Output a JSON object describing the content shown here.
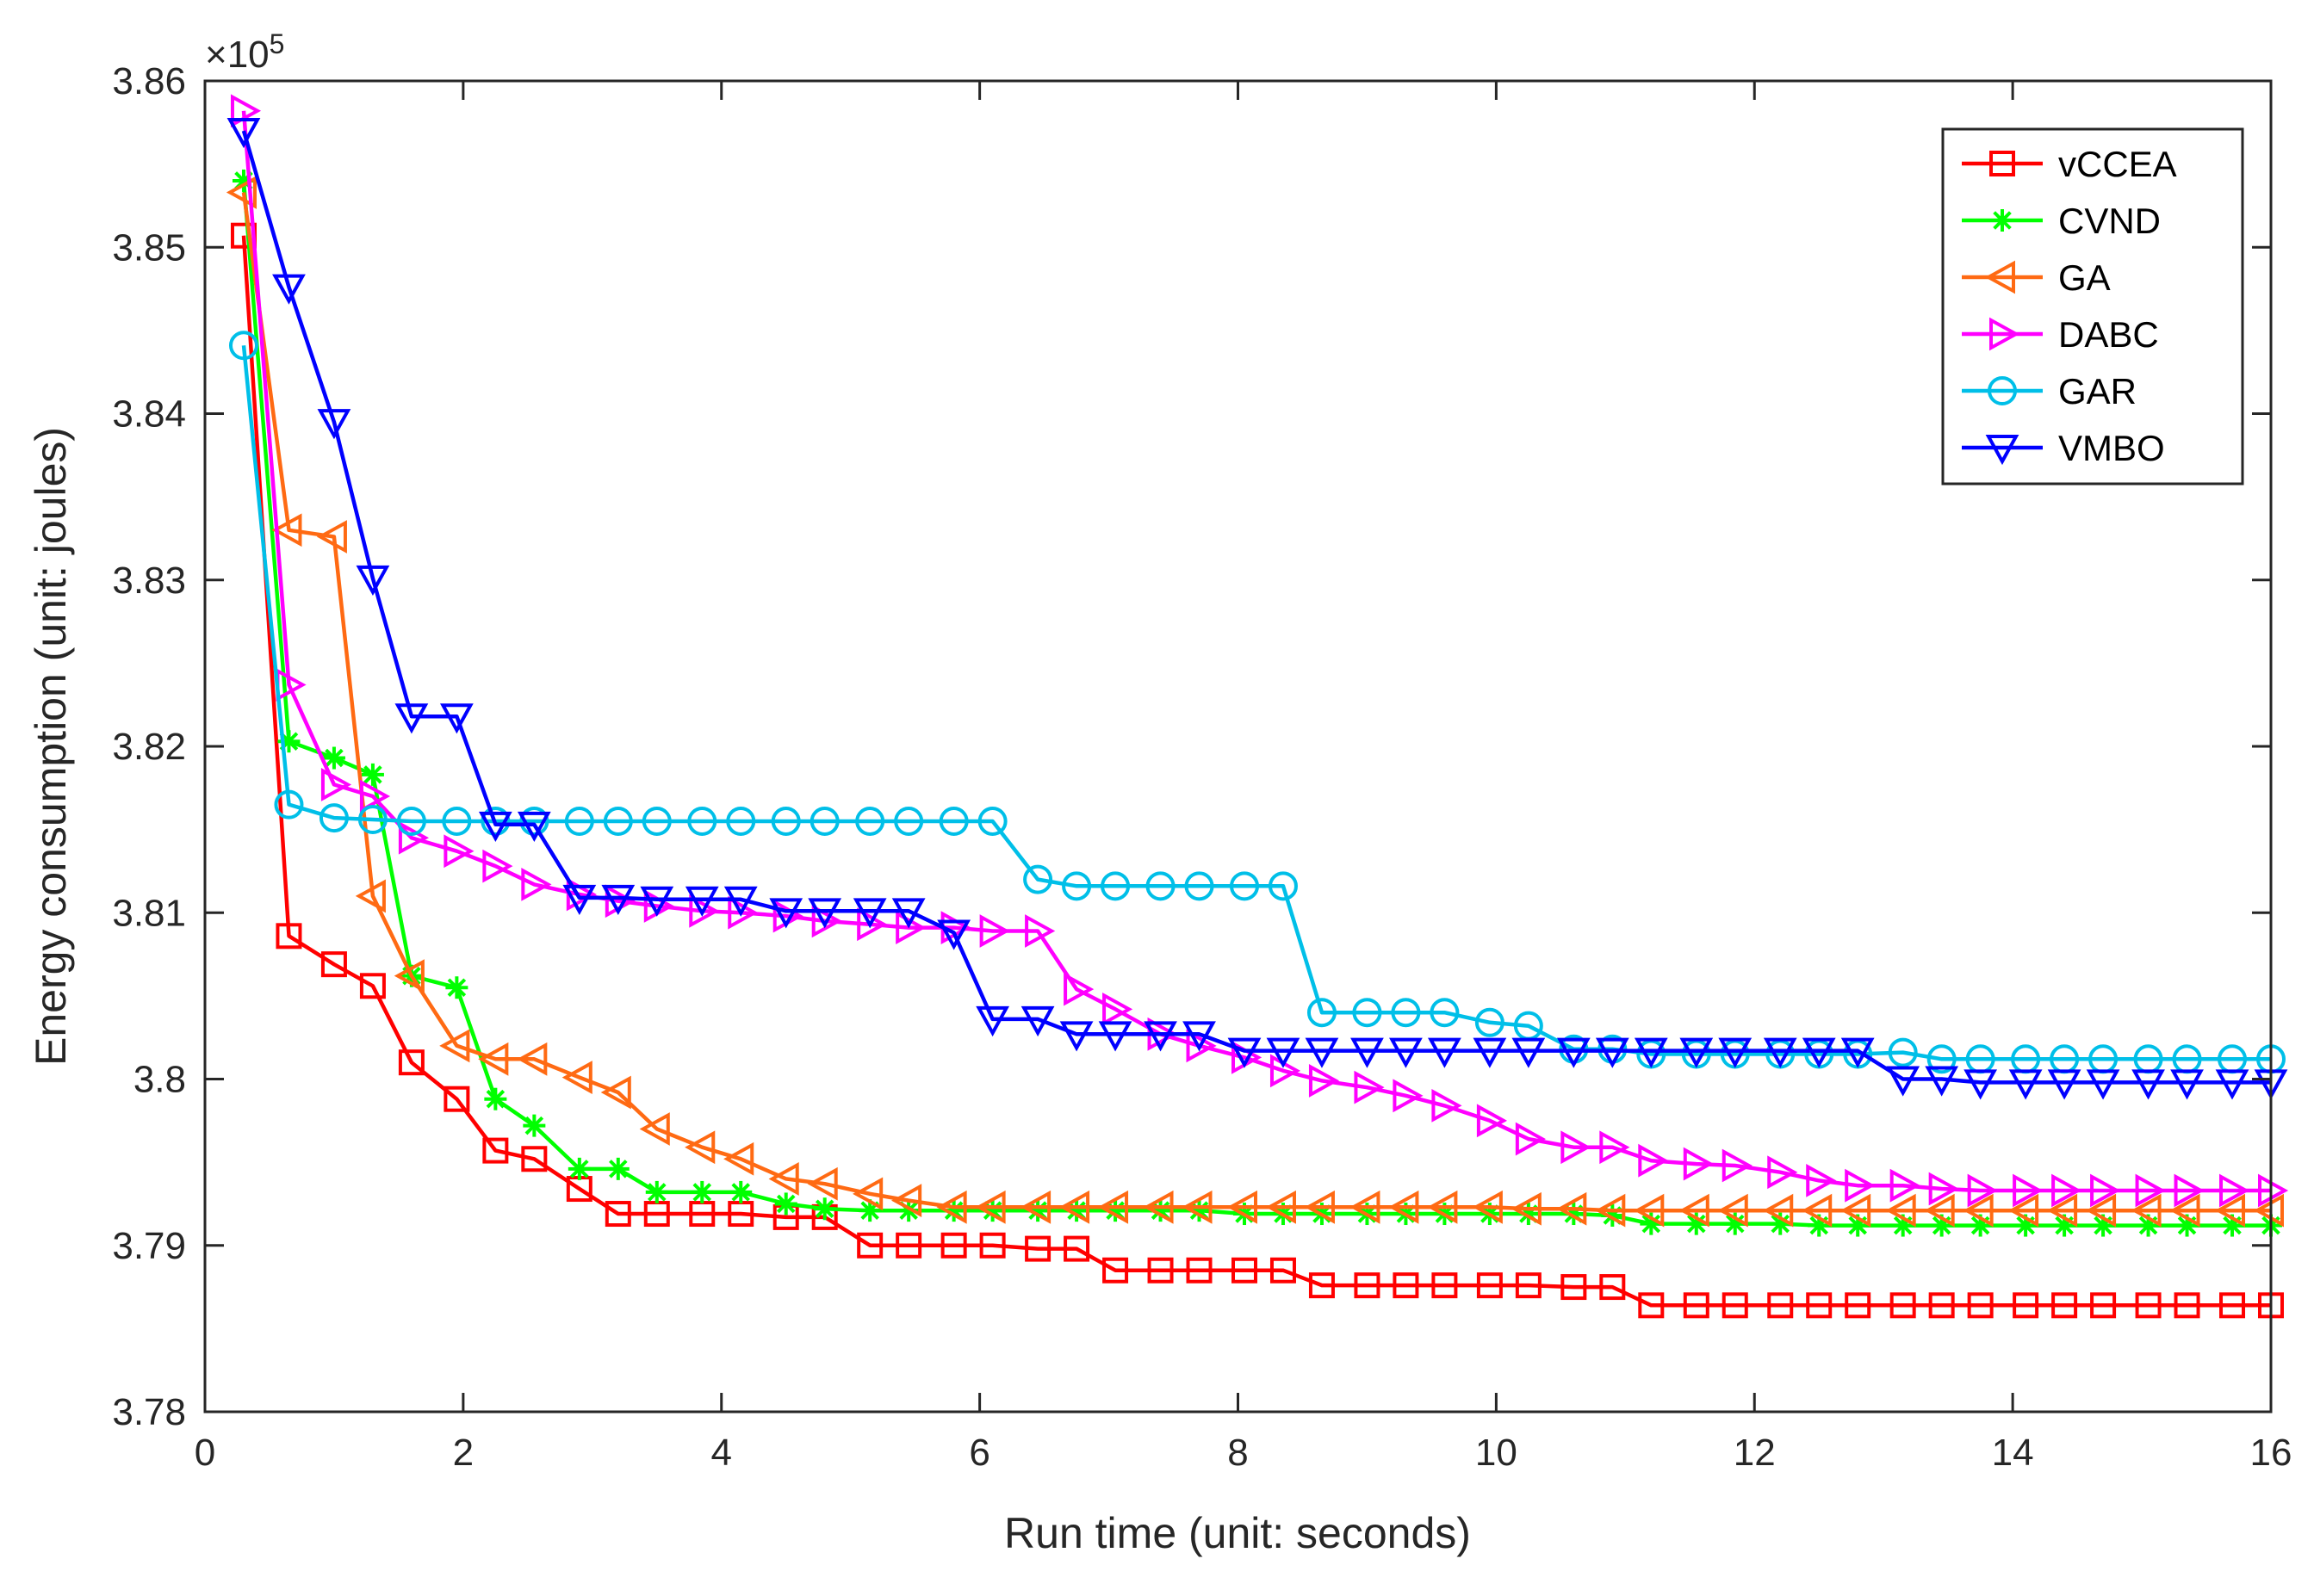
{
  "chart_data": {
    "type": "line",
    "title": "",
    "xlabel": "Run time (unit: seconds)",
    "ylabel": "Energy consumption (unit: joules)",
    "y_exponent_label": "×10",
    "y_exponent_power": "5",
    "xlim": [
      0,
      16
    ],
    "ylim": [
      3.78,
      3.86
    ],
    "x_ticks": [
      0,
      2,
      4,
      6,
      8,
      10,
      12,
      14,
      16
    ],
    "x_tick_labels": [
      "0",
      "2",
      "4",
      "6",
      "8",
      "10",
      "12",
      "14",
      "16"
    ],
    "y_ticks": [
      3.78,
      3.79,
      3.8,
      3.81,
      3.82,
      3.83,
      3.84,
      3.85,
      3.86
    ],
    "y_tick_labels": [
      "3.78",
      "3.79",
      "3.8",
      "3.81",
      "3.82",
      "3.83",
      "3.84",
      "3.85",
      "3.86"
    ],
    "grid": false,
    "legend_position": "top-right",
    "series": [
      {
        "name": "vCCEA",
        "color": "#ff0000",
        "marker": "square",
        "x": [
          0.3,
          0.65,
          1.0,
          1.3,
          1.6,
          1.95,
          2.25,
          2.55,
          2.9,
          3.2,
          3.5,
          3.85,
          4.15,
          4.5,
          4.8,
          5.15,
          5.45,
          5.8,
          6.1,
          6.45,
          6.75,
          7.05,
          7.4,
          7.7,
          8.05,
          8.35,
          8.65,
          9.0,
          9.3,
          9.6,
          9.95,
          10.25,
          10.6,
          10.9,
          11.2,
          11.55,
          11.85,
          12.2,
          12.5,
          12.8,
          13.15,
          13.45,
          13.75,
          14.1,
          14.4,
          14.7,
          15.05,
          15.35,
          15.7,
          16.0
        ],
        "y": [
          3.8507,
          3.8086,
          3.8069,
          3.8056,
          3.801,
          3.7988,
          3.7957,
          3.7952,
          3.7934,
          3.7919,
          3.7919,
          3.7919,
          3.7919,
          3.7917,
          3.7917,
          3.79,
          3.79,
          3.79,
          3.79,
          3.7898,
          3.7898,
          3.7885,
          3.7885,
          3.7885,
          3.7885,
          3.7885,
          3.7876,
          3.7876,
          3.7876,
          3.7876,
          3.7876,
          3.7876,
          3.7875,
          3.7875,
          3.7864,
          3.7864,
          3.7864,
          3.7864,
          3.7864,
          3.7864,
          3.7864,
          3.7864,
          3.7864,
          3.7864,
          3.7864,
          3.7864,
          3.7864,
          3.7864,
          3.7864,
          3.7864
        ]
      },
      {
        "name": "CVND",
        "color": "#00ff00",
        "marker": "asterisk",
        "x": [
          0.3,
          0.65,
          1.0,
          1.3,
          1.6,
          1.95,
          2.25,
          2.55,
          2.9,
          3.2,
          3.5,
          3.85,
          4.15,
          4.5,
          4.8,
          5.15,
          5.45,
          5.8,
          6.1,
          6.45,
          6.75,
          7.05,
          7.4,
          7.7,
          8.05,
          8.35,
          8.65,
          9.0,
          9.3,
          9.6,
          9.95,
          10.25,
          10.6,
          10.9,
          11.2,
          11.55,
          11.85,
          12.2,
          12.5,
          12.8,
          13.15,
          13.45,
          13.75,
          14.1,
          14.4,
          14.7,
          15.05,
          15.35,
          15.7,
          16.0
        ],
        "y": [
          3.854,
          3.8203,
          3.8193,
          3.8183,
          3.8062,
          3.8055,
          3.7988,
          3.7972,
          3.7946,
          3.7946,
          3.7932,
          3.7932,
          3.7932,
          3.7925,
          3.7922,
          3.7921,
          3.7921,
          3.7921,
          3.7921,
          3.7921,
          3.7921,
          3.7921,
          3.7921,
          3.7921,
          3.7919,
          3.7919,
          3.7919,
          3.7919,
          3.7919,
          3.7919,
          3.7919,
          3.7919,
          3.7919,
          3.7918,
          3.7913,
          3.7913,
          3.7913,
          3.7913,
          3.7912,
          3.7912,
          3.7912,
          3.7912,
          3.7912,
          3.7912,
          3.7912,
          3.7912,
          3.7912,
          3.7912,
          3.7912,
          3.7912
        ]
      },
      {
        "name": "GA",
        "color": "#ff6a13",
        "marker": "triangle-left",
        "x": [
          0.3,
          0.65,
          1.0,
          1.3,
          1.6,
          1.95,
          2.25,
          2.55,
          2.9,
          3.2,
          3.5,
          3.85,
          4.15,
          4.5,
          4.8,
          5.15,
          5.45,
          5.8,
          6.1,
          6.45,
          6.75,
          7.05,
          7.4,
          7.7,
          8.05,
          8.35,
          8.65,
          9.0,
          9.3,
          9.6,
          9.95,
          10.25,
          10.6,
          10.9,
          11.2,
          11.55,
          11.85,
          12.2,
          12.5,
          12.8,
          13.15,
          13.45,
          13.75,
          14.1,
          14.4,
          14.7,
          15.05,
          15.35,
          15.7,
          16.0
        ],
        "y": [
          3.8533,
          3.833,
          3.8326,
          3.811,
          3.8062,
          3.802,
          3.8012,
          3.8012,
          3.8001,
          3.7992,
          3.797,
          3.7959,
          3.7952,
          3.794,
          3.7937,
          3.7931,
          3.7927,
          3.7923,
          3.7923,
          3.7923,
          3.7923,
          3.7923,
          3.7923,
          3.7923,
          3.7923,
          3.7923,
          3.7923,
          3.7923,
          3.7923,
          3.7923,
          3.7923,
          3.7922,
          3.7922,
          3.7921,
          3.7921,
          3.7921,
          3.7921,
          3.7921,
          3.7921,
          3.7921,
          3.7921,
          3.7921,
          3.7921,
          3.7921,
          3.7921,
          3.7921,
          3.7921,
          3.7921,
          3.7921,
          3.7921
        ]
      },
      {
        "name": "DABC",
        "color": "#ff00ff",
        "marker": "triangle-right",
        "x": [
          0.3,
          0.65,
          1.0,
          1.3,
          1.6,
          1.95,
          2.25,
          2.55,
          2.9,
          3.2,
          3.5,
          3.85,
          4.15,
          4.5,
          4.8,
          5.15,
          5.45,
          5.8,
          6.1,
          6.45,
          6.75,
          7.05,
          7.4,
          7.7,
          8.05,
          8.35,
          8.65,
          9.0,
          9.3,
          9.6,
          9.95,
          10.25,
          10.6,
          10.9,
          11.2,
          11.55,
          11.85,
          12.2,
          12.5,
          12.8,
          13.15,
          13.45,
          13.75,
          14.1,
          14.4,
          14.7,
          15.05,
          15.35,
          15.7,
          16.0
        ],
        "y": [
          3.8582,
          3.8237,
          3.8177,
          3.817,
          3.8145,
          3.8137,
          3.8128,
          3.8117,
          3.8111,
          3.8107,
          3.8104,
          3.8101,
          3.81,
          3.8098,
          3.8095,
          3.8093,
          3.8091,
          3.8091,
          3.8089,
          3.8089,
          3.8054,
          3.8042,
          3.8027,
          3.802,
          3.8013,
          3.8005,
          3.7999,
          3.7995,
          3.799,
          3.7984,
          3.7975,
          3.7964,
          3.7959,
          3.7959,
          3.7951,
          3.7949,
          3.7948,
          3.7944,
          3.7939,
          3.7936,
          3.7936,
          3.7934,
          3.7933,
          3.7933,
          3.7933,
          3.7933,
          3.7933,
          3.7933,
          3.7933,
          3.7933
        ]
      },
      {
        "name": "GAR",
        "color": "#00bfe8",
        "marker": "circle",
        "x": [
          0.3,
          0.65,
          1.0,
          1.3,
          1.6,
          1.95,
          2.25,
          2.55,
          2.9,
          3.2,
          3.5,
          3.85,
          4.15,
          4.5,
          4.8,
          5.15,
          5.45,
          5.8,
          6.1,
          6.45,
          6.75,
          7.05,
          7.4,
          7.7,
          8.05,
          8.35,
          8.65,
          9.0,
          9.3,
          9.6,
          9.95,
          10.25,
          10.6,
          10.9,
          11.2,
          11.55,
          11.85,
          12.2,
          12.5,
          12.8,
          13.15,
          13.45,
          13.75,
          14.1,
          14.4,
          14.7,
          15.05,
          15.35,
          15.7,
          16.0
        ],
        "y": [
          3.8441,
          3.8165,
          3.8157,
          3.8156,
          3.8155,
          3.8155,
          3.8155,
          3.8155,
          3.8155,
          3.8155,
          3.8155,
          3.8155,
          3.8155,
          3.8155,
          3.8155,
          3.8155,
          3.8155,
          3.8155,
          3.8155,
          3.812,
          3.8116,
          3.8116,
          3.8116,
          3.8116,
          3.8116,
          3.8116,
          3.804,
          3.804,
          3.804,
          3.804,
          3.8034,
          3.8032,
          3.8018,
          3.8018,
          3.8015,
          3.8015,
          3.8015,
          3.8015,
          3.8015,
          3.8015,
          3.8016,
          3.8012,
          3.8012,
          3.8012,
          3.8012,
          3.8012,
          3.8012,
          3.8012,
          3.8012,
          3.8012
        ]
      },
      {
        "name": "VMBO",
        "color": "#0000ff",
        "marker": "triangle-down",
        "x": [
          0.3,
          0.65,
          1.0,
          1.3,
          1.6,
          1.95,
          2.25,
          2.55,
          2.9,
          3.2,
          3.5,
          3.85,
          4.15,
          4.5,
          4.8,
          5.15,
          5.45,
          5.8,
          6.1,
          6.45,
          6.75,
          7.05,
          7.4,
          7.7,
          8.05,
          8.35,
          8.65,
          9.0,
          9.3,
          9.6,
          9.95,
          10.25,
          10.6,
          10.9,
          11.2,
          11.55,
          11.85,
          12.2,
          12.5,
          12.8,
          13.15,
          13.45,
          13.75,
          14.1,
          14.4,
          14.7,
          15.05,
          15.35,
          15.7,
          16.0
        ],
        "y": [
          3.857,
          3.8476,
          3.8395,
          3.8301,
          3.8218,
          3.8218,
          3.8153,
          3.8153,
          3.8109,
          3.8109,
          3.8108,
          3.8108,
          3.8108,
          3.8101,
          3.8101,
          3.8101,
          3.8101,
          3.8088,
          3.8036,
          3.8036,
          3.8027,
          3.8027,
          3.8027,
          3.8027,
          3.8017,
          3.8017,
          3.8017,
          3.8017,
          3.8017,
          3.8017,
          3.8017,
          3.8017,
          3.8017,
          3.8017,
          3.8017,
          3.8017,
          3.8017,
          3.8017,
          3.8017,
          3.8017,
          3.8,
          3.8,
          3.7998,
          3.7998,
          3.7998,
          3.7998,
          3.7998,
          3.7998,
          3.7998,
          3.7998
        ]
      }
    ]
  }
}
